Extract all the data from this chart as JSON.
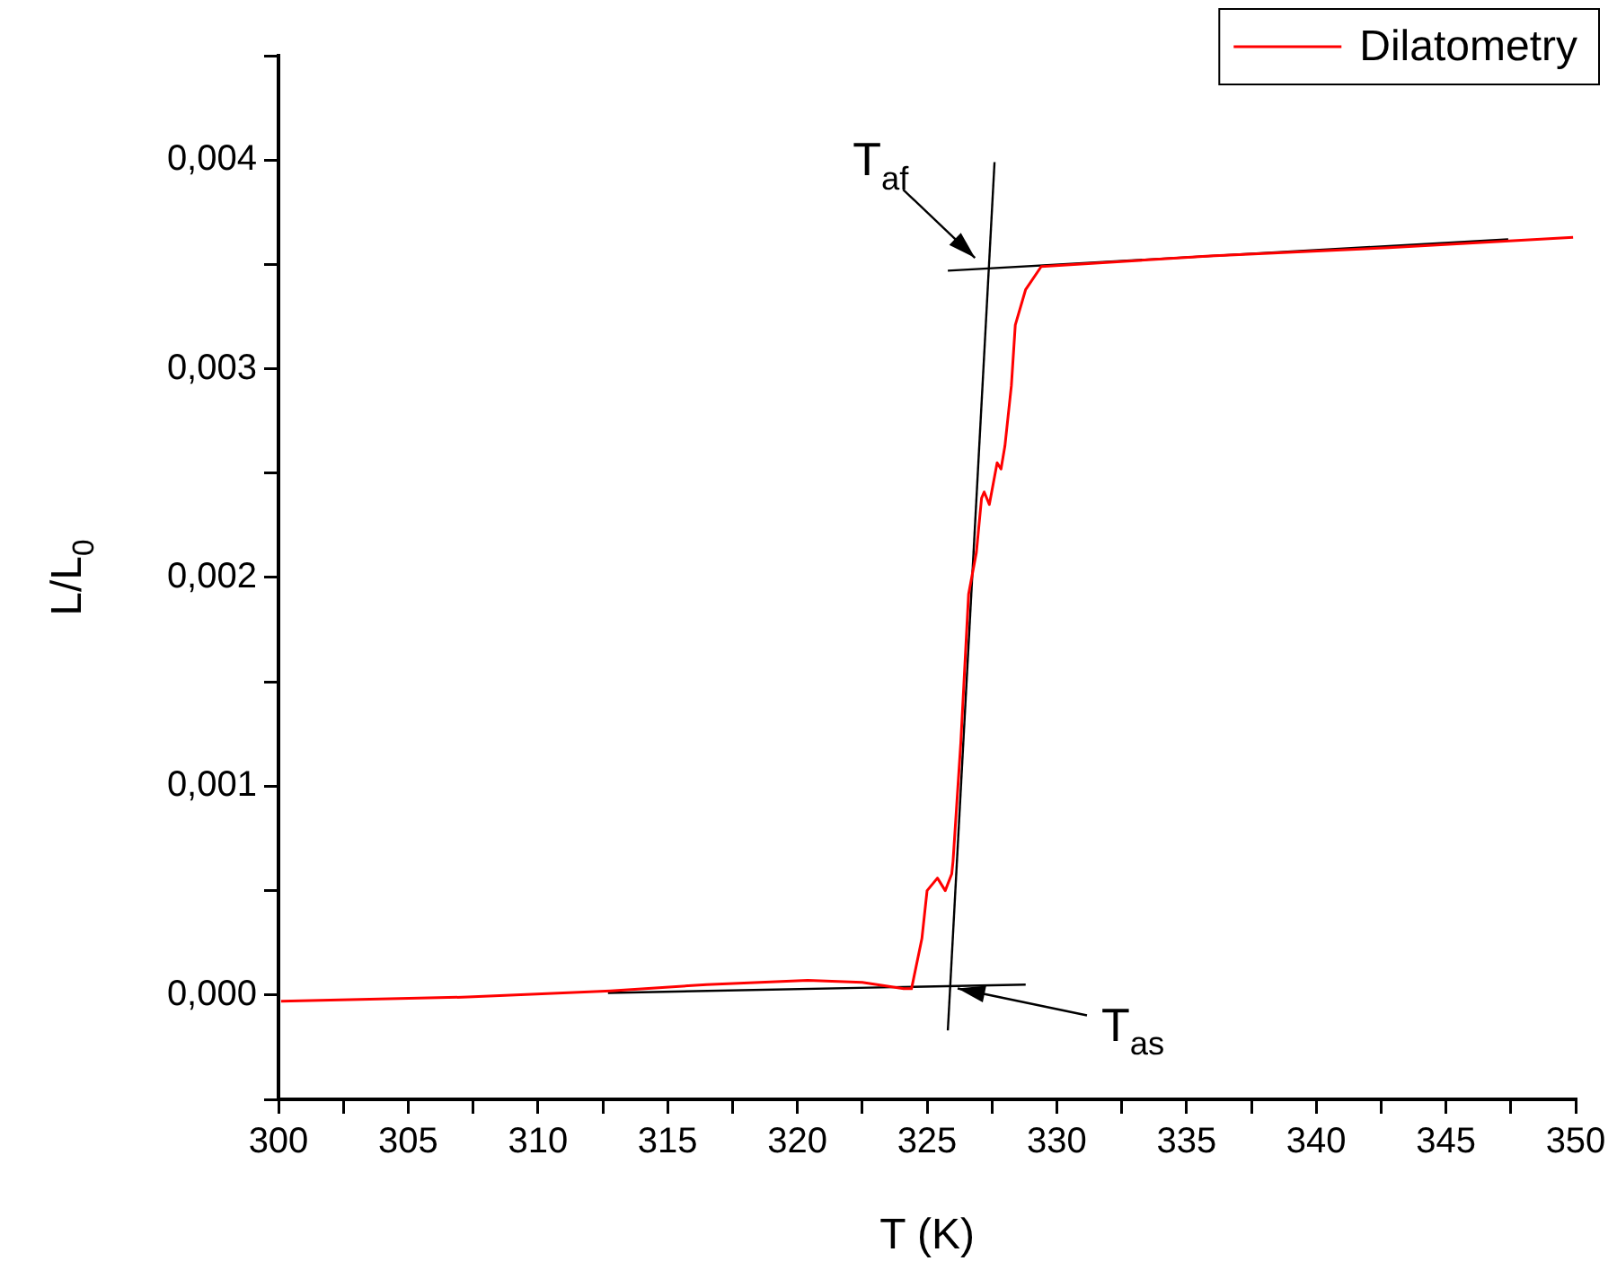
{
  "chart_data": {
    "type": "line",
    "xlabel": "T (K)",
    "ylabel": "L/L$_{0}$",
    "xlim": [
      300,
      350
    ],
    "ylim": [
      -0.0005,
      0.0045
    ],
    "xticks": [
      300,
      {
        "value": 302.5,
        "label": null
      },
      305,
      {
        "value": 307.5,
        "label": null
      },
      310,
      {
        "value": 312.5,
        "label": null
      },
      315,
      {
        "value": 317.5,
        "label": null
      },
      320,
      {
        "value": 322.5,
        "label": null
      },
      325,
      {
        "value": 327.5,
        "label": null
      },
      330,
      {
        "value": 332.5,
        "label": null
      },
      335,
      {
        "value": 337.5,
        "label": null
      },
      340,
      {
        "value": 342.5,
        "label": null
      },
      345,
      {
        "value": 347.5,
        "label": null
      },
      350
    ],
    "yticks": [
      {
        "value": -0.0005,
        "label": null
      },
      {
        "value": 0,
        "label": "0,000"
      },
      {
        "value": 0.0005,
        "label": null
      },
      {
        "value": 0.001,
        "label": "0,001"
      },
      {
        "value": 0.0015,
        "label": null
      },
      {
        "value": 0.002,
        "label": "0,002"
      },
      {
        "value": 0.0025,
        "label": null
      },
      {
        "value": 0.003,
        "label": "0,003"
      },
      {
        "value": 0.0035,
        "label": null
      },
      {
        "value": 0.004,
        "label": "0,004"
      },
      {
        "value": 0.0045,
        "label": null
      }
    ],
    "grid": false,
    "legend": "top right",
    "marker": "none",
    "line_style": "solid",
    "series": [
      {
        "name": "Dilatometry",
        "color": "#ff0000",
        "x": [
          300.1,
          307.3,
          312.8,
          316.5,
          320.4,
          322.5,
          324.1,
          324.4,
          324.8,
          325.0,
          325.4,
          325.7,
          325.95,
          326.0,
          326.3,
          326.6,
          326.9,
          327.1,
          327.2,
          327.4,
          327.7,
          327.85,
          328.0,
          328.25,
          328.4,
          328.8,
          329.4,
          335.9,
          342.8,
          349.9
        ],
        "values": [
          -3e-05,
          -1e-05,
          2e-05,
          5e-05,
          7e-05,
          6e-05,
          3e-05,
          3e-05,
          0.00027,
          0.0005,
          0.00056,
          0.0005,
          0.00058,
          0.00064,
          0.00121,
          0.00192,
          0.00212,
          0.00238,
          0.00241,
          0.00235,
          0.00255,
          0.00252,
          0.00263,
          0.00292,
          0.00321,
          0.00338,
          0.00349,
          0.00354,
          0.00358,
          0.00363
        ]
      },
      {
        "type": "line",
        "color": "#000000",
        "x": [
          312.7,
          328.8
        ],
        "values": [
          1e-05,
          5e-05
        ]
      },
      {
        "type": "line",
        "color": "#000000",
        "x": [
          325.8,
          327.6
        ],
        "values": [
          -0.00017,
          0.00399
        ]
      },
      {
        "type": "line",
        "color": "#000000",
        "x": [
          325.8,
          347.4
        ],
        "values": [
          0.00347,
          0.00362
        ]
      }
    ],
    "annotations": [
      {
        "text": "T$_{af}$",
        "x": 327.4,
        "y": 0.00348
      },
      {
        "text": "T$_{as}$",
        "x": 325.9,
        "y": 4e-05
      }
    ]
  }
}
